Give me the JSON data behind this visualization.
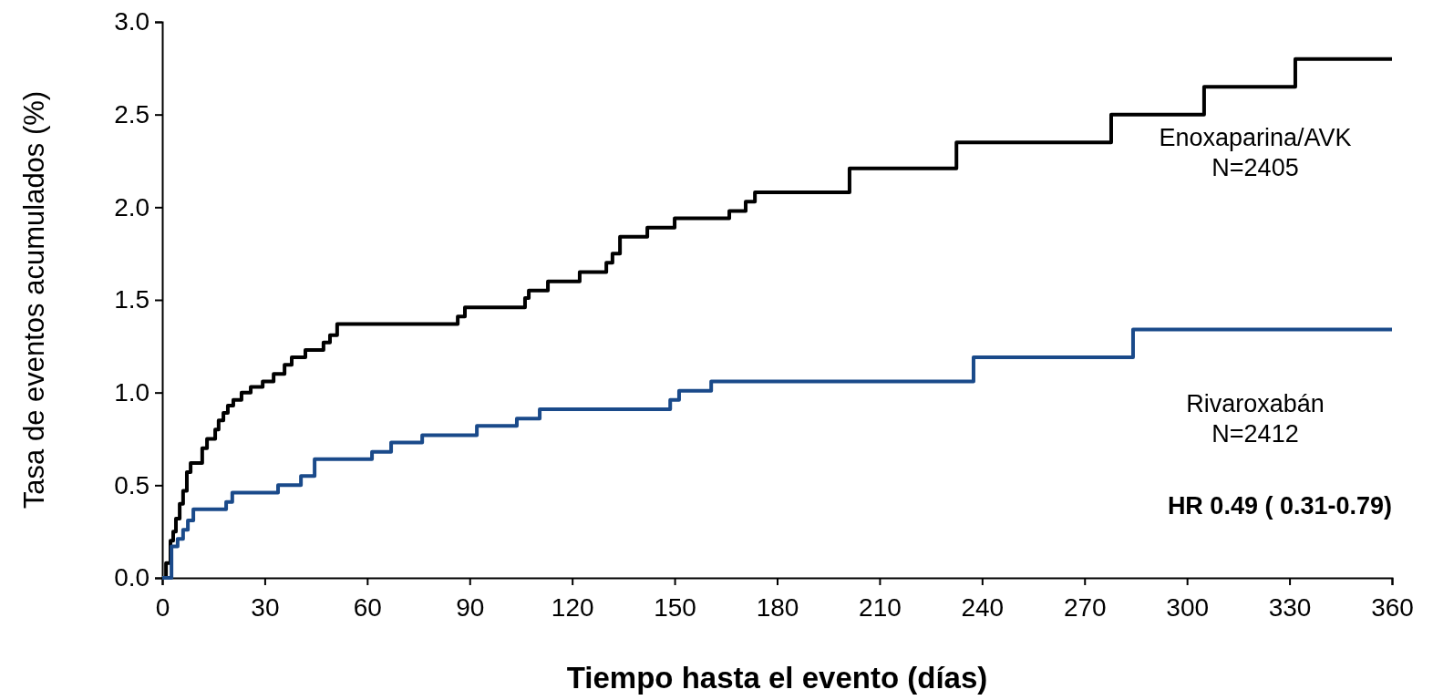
{
  "chart_data": {
    "type": "step",
    "xlabel": "Tiempo hasta el evento (días)",
    "ylabel": "Tasa de eventos  acumulados (%)",
    "xlim": [
      0,
      360
    ],
    "xticks": [
      0,
      30,
      60,
      90,
      120,
      150,
      180,
      210,
      240,
      270,
      300,
      330,
      360
    ],
    "ylim": [
      0,
      3
    ],
    "yticks": [
      {
        "value": 0,
        "label": "0.0"
      },
      {
        "value": 0.5,
        "label": "0.5"
      },
      {
        "value": 1,
        "label": "1.0"
      },
      {
        "value": 1.5,
        "label": "1.5"
      },
      {
        "value": 2,
        "label": "2.0"
      },
      {
        "value": 2.5,
        "label": "2.5"
      },
      {
        "value": 3,
        "label": "3.0"
      }
    ],
    "grid": false,
    "marker": "none",
    "line_style": "solid",
    "annotations": [
      "HR 0.49 ( 0.31-0.79)"
    ],
    "series": [
      {
        "name": "Enoxaparina/AVK N=2405",
        "color": "#000000",
        "x": [
          0,
          1.1,
          2.4,
          3.2,
          4,
          5.1,
          6.1,
          7.2,
          8.3,
          11.7,
          13.1,
          15.5,
          16.5,
          17.9,
          19.2,
          20.8,
          23.2,
          25.9,
          29.4,
          32.6,
          35.8,
          37.9,
          41.9,
          47.2,
          49.1,
          51.2,
          86.5,
          88.6,
          106.2,
          107.3,
          112.9,
          122.2,
          130,
          131.8,
          134,
          142,
          150,
          166,
          170.8,
          173.5,
          201.2,
          232.5,
          277.8,
          305,
          331.7,
          360
        ],
        "values": [
          0,
          0.08,
          0.2,
          0.25,
          0.32,
          0.4,
          0.47,
          0.57,
          0.62,
          0.7,
          0.75,
          0.8,
          0.85,
          0.89,
          0.93,
          0.96,
          1.0,
          1.03,
          1.06,
          1.1,
          1.15,
          1.19,
          1.23,
          1.27,
          1.31,
          1.37,
          1.41,
          1.46,
          1.51,
          1.55,
          1.6,
          1.65,
          1.7,
          1.75,
          1.84,
          1.89,
          1.94,
          1.98,
          2.03,
          2.08,
          2.21,
          2.35,
          2.5,
          2.65,
          2.8,
          2.8
        ]
      },
      {
        "name": "Rivaroxabán N=2412",
        "color": "#1a4a8a",
        "x": [
          0,
          2.7,
          4.5,
          6.1,
          7.5,
          9.1,
          18.7,
          20.5,
          33.9,
          40.6,
          44.6,
          61.4,
          67,
          76.1,
          92.1,
          103.8,
          110.5,
          148.7,
          151.3,
          160.7,
          237.5,
          284.2,
          360
        ],
        "values": [
          0,
          0.17,
          0.21,
          0.26,
          0.31,
          0.37,
          0.41,
          0.46,
          0.5,
          0.55,
          0.64,
          0.68,
          0.73,
          0.77,
          0.82,
          0.86,
          0.91,
          0.96,
          1.01,
          1.06,
          1.19,
          1.34,
          1.34
        ]
      }
    ]
  }
}
